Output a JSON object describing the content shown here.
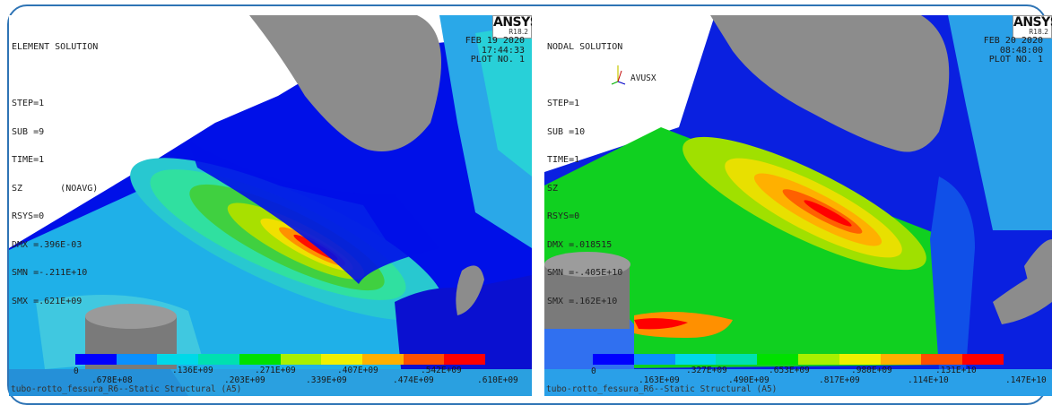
{
  "legend_colors": [
    "#0000ff",
    "#0a90ff",
    "#00d8e8",
    "#00e0b0",
    "#00e000",
    "#a8f000",
    "#f0f000",
    "#ffb000",
    "#ff5000",
    "#ff0000"
  ],
  "left": {
    "logo": {
      "brand": "ANSYS",
      "version": "R18.2"
    },
    "info": [
      "ELEMENT SOLUTION",
      "",
      "STEP=1",
      "SUB =9",
      "TIME=1",
      "SZ       (NOAVG)",
      "RSYS=0",
      "DMX =.396E-03",
      "SMN =-.211E+10",
      "SMX =.621E+09"
    ],
    "date": [
      "FEB 19 2020",
      "17:44:33",
      "PLOT NO.   1"
    ],
    "ticks_lower": [
      "0",
      ".678E+08",
      ".203E+09",
      ".339E+09",
      ".474E+09",
      ".610E+09"
    ],
    "ticks_upper": [
      ".136E+09",
      ".271E+09",
      ".407E+09",
      ".542E+09"
    ],
    "caption": "tubo-rotto_fessura_R6--Static Structural (A5)"
  },
  "right": {
    "logo": {
      "brand": "ANSYS",
      "version": "R18.2"
    },
    "info": [
      "NODAL SOLUTION",
      "",
      "STEP=1",
      "SUB =10",
      "TIME=1",
      "SZ",
      "RSYS=0",
      "DMX =.018515",
      "SMN =-.405E+10",
      "SMX =.162E+10"
    ],
    "triad_label": "AVUSX",
    "date": [
      "FEB 20 2020",
      "08:48:00",
      "PLOT NO.   1"
    ],
    "ticks_lower": [
      "0",
      ".163E+09",
      ".490E+09",
      ".817E+09",
      ".114E+10",
      ".147E+10"
    ],
    "ticks_upper": [
      ".327E+09",
      ".653E+09",
      ".980E+09",
      ".131E+10"
    ],
    "caption": "tubo-rotto_fessura_R6--Static Structural (A5)"
  }
}
